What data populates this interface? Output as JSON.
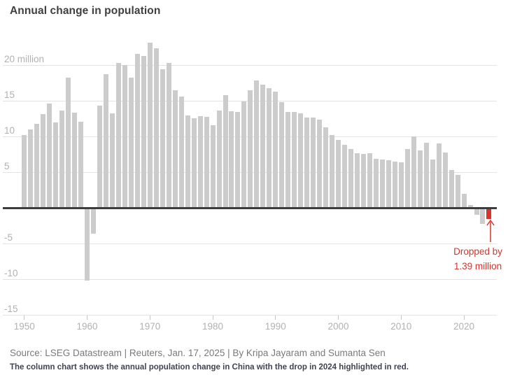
{
  "title": "Annual change in population",
  "source_line": "Source: LSEG Datastream | Reuters, Jan. 17, 2025 | By Kripa Jayaram and Sumanta Sen",
  "caption": "The column chart shows the annual population change in China with the drop in 2024 highlighted in red.",
  "annotation": {
    "line1": "Dropped by",
    "line2": "1.39 million"
  },
  "colors": {
    "bar": "#cccccc",
    "highlight": "#d9342b",
    "grid": "#e3e3e3",
    "zero_line": "#3d3d3d",
    "axis_label": "#b1b1b1",
    "title": "#3f3f3f",
    "source": "#7a7a7a",
    "caption": "#3e4450"
  },
  "chart_data": {
    "type": "bar",
    "title": "Annual change in population",
    "unit": "million",
    "years": [
      1950,
      1951,
      1952,
      1953,
      1954,
      1955,
      1956,
      1957,
      1958,
      1959,
      1960,
      1961,
      1962,
      1963,
      1964,
      1965,
      1966,
      1967,
      1968,
      1969,
      1970,
      1971,
      1972,
      1973,
      1974,
      1975,
      1976,
      1977,
      1978,
      1979,
      1980,
      1981,
      1982,
      1983,
      1984,
      1985,
      1986,
      1987,
      1988,
      1989,
      1990,
      1991,
      1992,
      1993,
      1994,
      1995,
      1996,
      1997,
      1998,
      1999,
      2000,
      2001,
      2002,
      2003,
      2004,
      2005,
      2006,
      2007,
      2008,
      2009,
      2010,
      2011,
      2012,
      2013,
      2014,
      2015,
      2016,
      2017,
      2018,
      2019,
      2020,
      2021,
      2022,
      2023,
      2024
    ],
    "values": [
      10.29,
      11.04,
      11.82,
      13.14,
      14.7,
      11.99,
      13.63,
      18.25,
      13.41,
      12.13,
      -10.0,
      -3.48,
      14.36,
      18.77,
      13.27,
      20.39,
      20.04,
      18.26,
      21.66,
      21.37,
      23.21,
      22.37,
      19.48,
      20.34,
      16.48,
      15.61,
      12.97,
      12.57,
      12.85,
      12.83,
      11.63,
      13.67,
      15.82,
      13.54,
      13.49,
      14.94,
      16.56,
      17.93,
      17.26,
      16.78,
      16.29,
      14.9,
      13.48,
      13.46,
      13.33,
      12.71,
      12.68,
      12.37,
      11.35,
      10.25,
      9.57,
      8.84,
      8.26,
      7.74,
      7.61,
      7.68,
      6.92,
      6.81,
      6.73,
      6.48,
      6.41,
      8.25,
      10.06,
      8.04,
      9.2,
      6.8,
      9.06,
      7.79,
      5.3,
      4.67,
      2.04,
      0.48,
      -0.85,
      -2.08,
      -1.39
    ],
    "highlight": {
      "year": 2024,
      "value": -1.39,
      "color": "#d9342b",
      "label": "Dropped by 1.39 million"
    },
    "y_gridlines": [
      20,
      15,
      10,
      5,
      0,
      -5,
      -10,
      -15
    ],
    "y_axis_top_label": "20 million",
    "x_ticks": [
      1950,
      1960,
      1970,
      1980,
      1990,
      2000,
      2010,
      2020
    ],
    "ylim": [
      -16,
      24
    ],
    "grid": true,
    "legend": false,
    "xlabel": "",
    "ylabel": "million"
  }
}
